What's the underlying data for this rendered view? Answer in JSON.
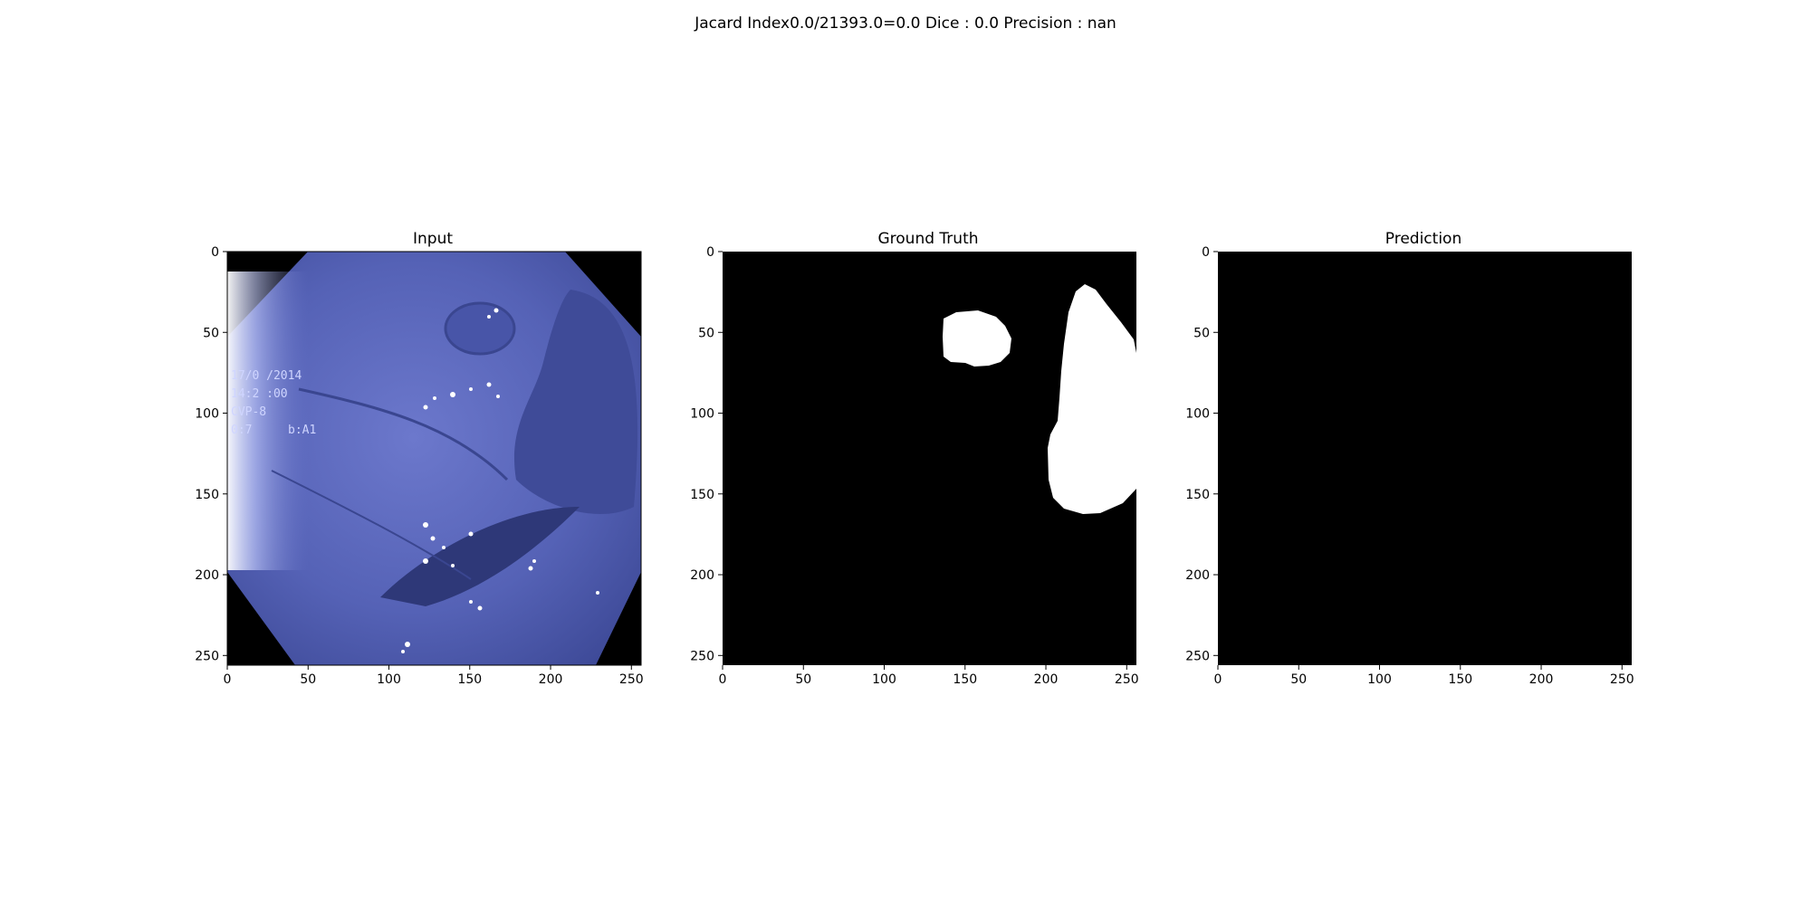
{
  "figure": {
    "suptitle": "Jacard Index0.0/21393.0=0.0 Dice : 0.0 Precision : nan"
  },
  "panels": [
    {
      "title": "Input",
      "xticks": [
        "0",
        "50",
        "100",
        "150",
        "200",
        "250"
      ],
      "yticks": [
        "0",
        "50",
        "100",
        "150",
        "200",
        "250"
      ],
      "overlay_text": [
        "17/0 /2014",
        "14:2 :00",
        "CVP-8",
        "0:7",
        "b:A1"
      ]
    },
    {
      "title": "Ground Truth",
      "xticks": [
        "0",
        "50",
        "100",
        "150",
        "200",
        "250"
      ],
      "yticks": [
        "0",
        "50",
        "100",
        "150",
        "200",
        "250"
      ]
    },
    {
      "title": "Prediction",
      "xticks": [
        "0",
        "50",
        "100",
        "150",
        "200",
        "250"
      ],
      "yticks": [
        "0",
        "50",
        "100",
        "150",
        "200",
        "250"
      ]
    }
  ],
  "colors": {
    "mask_bg": "#000000",
    "mask_fg": "#ffffff",
    "tissue": "#5560b8",
    "tissue_dark": "#3a4690",
    "tissue_light": "#8a96e6"
  }
}
